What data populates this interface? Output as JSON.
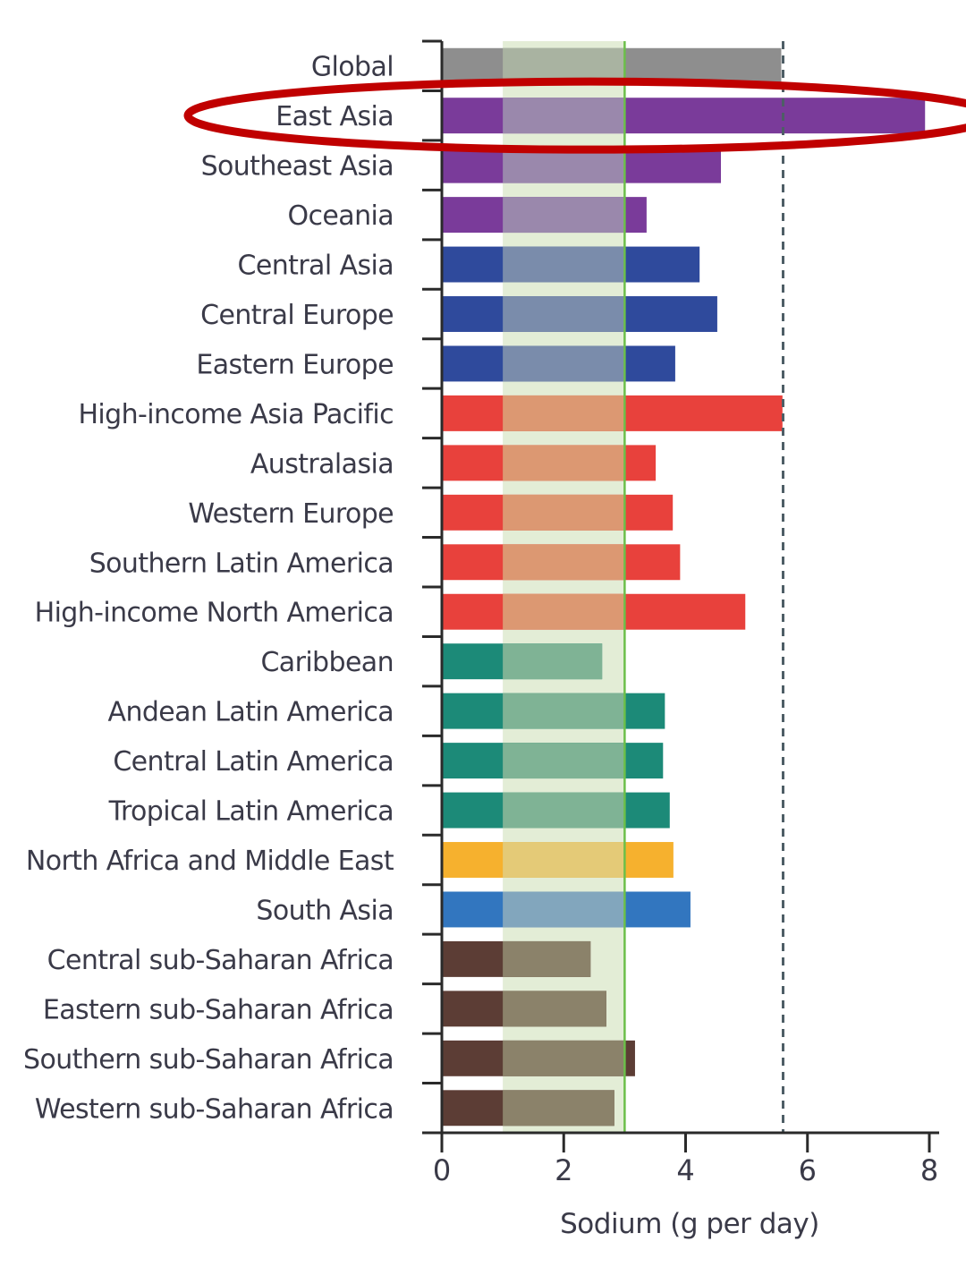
{
  "chart_data": {
    "type": "bar",
    "orientation": "horizontal",
    "title": "",
    "xlabel": "Sodium (g per day)",
    "ylabel": "",
    "xlim": [
      0,
      8
    ],
    "xticks": [
      "0",
      "2",
      "4",
      "6",
      "8"
    ],
    "grid": false,
    "highlight_band": {
      "from": 1,
      "to": 3,
      "color": "#e3edd6"
    },
    "reference_lines": [
      {
        "value": 3,
        "style": "solid",
        "color": "#6cbf4a"
      },
      {
        "value": 5.6,
        "style": "dashed",
        "color": "#4e5e66"
      }
    ],
    "annotation": {
      "type": "ellipse",
      "target": "East Asia",
      "color": "#c00000"
    },
    "categories": [
      "Global",
      "East Asia",
      "Southeast Asia",
      "Oceania",
      "Central Asia",
      "Central Europe",
      "Eastern Europe",
      "High-income Asia Pacific",
      "Australasia",
      "Western Europe",
      "Southern Latin America",
      "High-income North America",
      "Caribbean",
      "Andean Latin America",
      "Central Latin America",
      "Tropical Latin America",
      "North Africa and Middle East",
      "South Asia",
      "Central sub-Saharan Africa",
      "Eastern sub-Saharan Africa",
      "Southern sub-Saharan Africa",
      "Western sub-Saharan Africa"
    ],
    "values": [
      5.57,
      7.93,
      4.58,
      3.36,
      4.23,
      4.52,
      3.83,
      5.59,
      3.51,
      3.79,
      3.91,
      4.98,
      2.63,
      3.66,
      3.63,
      3.74,
      3.8,
      4.08,
      2.44,
      2.7,
      3.17,
      2.83
    ],
    "colors": [
      "#8e8e8e",
      "#7a3b9a",
      "#7a3b9a",
      "#7a3b9a",
      "#2f4a9c",
      "#2f4a9c",
      "#2f4a9c",
      "#e8413c",
      "#e8413c",
      "#e8413c",
      "#e8413c",
      "#e8413c",
      "#1c8a78",
      "#1c8a78",
      "#1c8a78",
      "#1c8a78",
      "#f6b12e",
      "#3276bf",
      "#5c3d35",
      "#5c3d35",
      "#5c3d35",
      "#5c3d35"
    ],
    "band_overlay_colors": [
      "#a9b3a1",
      "#9a88ac",
      "#9a88ac",
      "#9a88ac",
      "#7a8cab",
      "#7a8cab",
      "#7a8cab",
      "#dc9872",
      "#dc9872",
      "#dc9872",
      "#dc9872",
      "#dc9872",
      "#7fb395",
      "#7fb395",
      "#7fb395",
      "#7fb395",
      "#e4ca77",
      "#82a6bd",
      "#8b826a",
      "#8b826a",
      "#8b826a",
      "#8b826a"
    ]
  }
}
